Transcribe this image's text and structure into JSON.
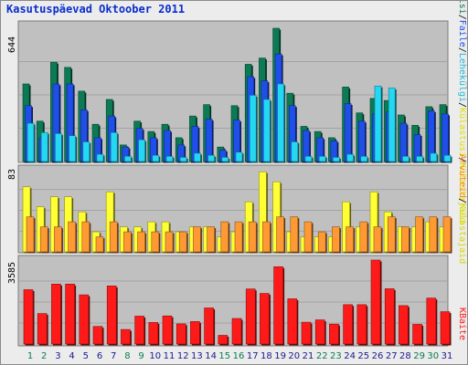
{
  "title": "Kasutuspäevad Oktoober 2011",
  "panels": {
    "visits": {
      "max_label": "644",
      "legend": [
        "Külastajaid",
        "Külastusi",
        "Lehekülgi",
        "Faile",
        "Pöördumisi"
      ]
    },
    "sites": {
      "max_label": "83",
      "legend": [
        "Arvuteid",
        "Külastajaid"
      ]
    },
    "kbytes": {
      "max_label": "3585",
      "legend": [
        "KBaite"
      ]
    }
  },
  "colors": {
    "background": "#c0c0c0",
    "title": "#0a2ecc",
    "hits": "#0b7a55",
    "files": "#1f4fe8",
    "pages": "#24d8f4",
    "visits": "#ffff33",
    "sites": "#ff9933",
    "kbytes": "#ff1a1a",
    "weekend_day": "#0b7a55",
    "weekday": "#1a1a8c"
  },
  "chart_data": [
    {
      "type": "bar",
      "title": "",
      "categories": [
        "1",
        "2",
        "3",
        "4",
        "5",
        "6",
        "7",
        "8",
        "9",
        "10",
        "11",
        "12",
        "13",
        "14",
        "15",
        "16",
        "17",
        "18",
        "19",
        "20",
        "21",
        "22",
        "23",
        "24",
        "25",
        "26",
        "27",
        "28",
        "29",
        "30",
        "31"
      ],
      "weekend_days": [
        "1",
        "2",
        "8",
        "9",
        "15",
        "16",
        "22",
        "23",
        "29",
        "30"
      ],
      "ylim": [
        0,
        644
      ],
      "series": [
        {
          "name": "Pöördumisi",
          "values": [
            375,
            195,
            480,
            455,
            340,
            180,
            300,
            80,
            195,
            145,
            180,
            115,
            220,
            275,
            70,
            270,
            470,
            500,
            644,
            330,
            170,
            145,
            115,
            360,
            235,
            305,
            295,
            225,
            175,
            265,
            275
          ]
        },
        {
          "name": "Faile",
          "values": [
            270,
            115,
            375,
            375,
            250,
            115,
            220,
            70,
            160,
            115,
            150,
            80,
            170,
            205,
            55,
            200,
            410,
            390,
            520,
            270,
            150,
            115,
            100,
            280,
            195,
            230,
            240,
            185,
            130,
            245,
            230
          ]
        },
        {
          "name": "Lehekülgi",
          "values": [
            185,
            140,
            135,
            125,
            95,
            35,
            140,
            25,
            105,
            30,
            25,
            20,
            40,
            30,
            20,
            45,
            320,
            300,
            375,
            95,
            25,
            25,
            20,
            35,
            25,
            365,
            355,
            25,
            25,
            40,
            30
          ]
        }
      ]
    },
    {
      "type": "bar",
      "title": "",
      "categories": [
        "1",
        "2",
        "3",
        "4",
        "5",
        "6",
        "7",
        "8",
        "9",
        "10",
        "11",
        "12",
        "13",
        "14",
        "15",
        "16",
        "17",
        "18",
        "19",
        "20",
        "21",
        "22",
        "23",
        "24",
        "25",
        "26",
        "27",
        "28",
        "29",
        "30",
        "31"
      ],
      "ylim": [
        0,
        83
      ],
      "series": [
        {
          "name": "Külastajaid",
          "values": [
            65,
            45,
            55,
            55,
            40,
            20,
            60,
            25,
            25,
            30,
            30,
            20,
            25,
            25,
            15,
            20,
            50,
            80,
            70,
            20,
            15,
            15,
            15,
            50,
            25,
            60,
            40,
            25,
            25,
            30,
            25
          ]
        },
        {
          "name": "Arvuteid",
          "values": [
            35,
            25,
            25,
            30,
            30,
            15,
            30,
            20,
            20,
            20,
            20,
            20,
            25,
            25,
            30,
            30,
            30,
            30,
            35,
            35,
            30,
            20,
            25,
            25,
            30,
            25,
            35,
            25,
            35,
            35,
            35
          ]
        }
      ]
    },
    {
      "type": "bar",
      "title": "",
      "categories": [
        "1",
        "2",
        "3",
        "4",
        "5",
        "6",
        "7",
        "8",
        "9",
        "10",
        "11",
        "12",
        "13",
        "14",
        "15",
        "16",
        "17",
        "18",
        "19",
        "20",
        "21",
        "22",
        "23",
        "24",
        "25",
        "26",
        "27",
        "28",
        "29",
        "30",
        "31"
      ],
      "ylim": [
        0,
        3585
      ],
      "series": [
        {
          "name": "KBaite",
          "values": [
            2320,
            1300,
            2560,
            2560,
            2100,
            750,
            2480,
            620,
            1190,
            920,
            1200,
            860,
            960,
            1540,
            370,
            1090,
            2350,
            2160,
            3300,
            1930,
            930,
            1030,
            850,
            1680,
            1680,
            3585,
            2360,
            1640,
            840,
            1960,
            1380
          ]
        }
      ]
    }
  ]
}
